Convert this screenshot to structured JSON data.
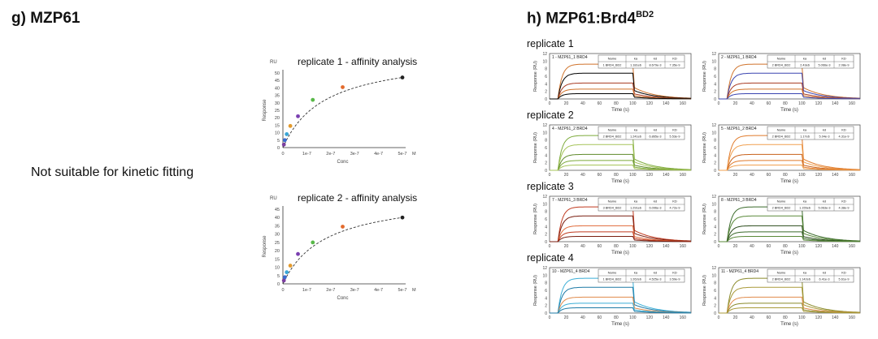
{
  "panel_g": {
    "title": "g) MZP61",
    "note": "Not suitable for kinetic fitting"
  },
  "panel_h": {
    "title": "h) MZP61:Brd4",
    "title_sup": "BD2",
    "replicate_labels": [
      "replicate 1",
      "replicate 2",
      "replicate 3",
      "replicate 4"
    ]
  },
  "chart_data": [
    {
      "type": "scatter",
      "title": "replicate 1 - affinity analysis",
      "xlabel": "Conc",
      "ylabel": "Response",
      "yunit": "RU",
      "xunit": "M",
      "xlim": [
        0,
        5e-07
      ],
      "ylim": [
        0,
        50
      ],
      "xticks": [
        "0",
        "1e-7",
        "2e-7",
        "3e-7",
        "4e-7",
        "5e-7"
      ],
      "yticks": [
        "0",
        "5",
        "10",
        "15",
        "20",
        "25",
        "30",
        "35",
        "40",
        "45",
        "50"
      ],
      "fit": "dashed steady-state affinity curve",
      "points": [
        {
          "x": 4e-09,
          "y": 2,
          "color": "#7b3fa0"
        },
        {
          "x": 8e-09,
          "y": 5,
          "color": "#3a6bd0"
        },
        {
          "x": 1.6e-08,
          "y": 9,
          "color": "#3aa6d6"
        },
        {
          "x": 3.1e-08,
          "y": 14.5,
          "color": "#e39a2c"
        },
        {
          "x": 6.3e-08,
          "y": 21,
          "color": "#7a3fb0"
        },
        {
          "x": 1.25e-07,
          "y": 32,
          "color": "#58b848"
        },
        {
          "x": 2.5e-07,
          "y": 40.5,
          "color": "#e36a2c"
        },
        {
          "x": 5e-07,
          "y": 47,
          "color": "#222222"
        }
      ]
    },
    {
      "type": "scatter",
      "title": "replicate 2 - affinity analysis",
      "xlabel": "Conc",
      "ylabel": "Response",
      "yunit": "RU",
      "xunit": "M",
      "xlim": [
        0,
        5e-07
      ],
      "ylim": [
        0,
        45
      ],
      "xticks": [
        "0",
        "1e-7",
        "2e-7",
        "3e-7",
        "4e-7",
        "5e-7"
      ],
      "yticks": [
        "0",
        "5",
        "10",
        "15",
        "20",
        "25",
        "30",
        "35",
        "40",
        "45"
      ],
      "fit": "dashed steady-state affinity curve",
      "points": [
        {
          "x": 4e-09,
          "y": 2,
          "color": "#7b3fa0"
        },
        {
          "x": 8e-09,
          "y": 4,
          "color": "#3a6bd0"
        },
        {
          "x": 1.6e-08,
          "y": 7,
          "color": "#3aa6d6"
        },
        {
          "x": 3.1e-08,
          "y": 11,
          "color": "#e39a2c"
        },
        {
          "x": 6.3e-08,
          "y": 18,
          "color": "#7a3fb0"
        },
        {
          "x": 1.25e-07,
          "y": 25,
          "color": "#58b848"
        },
        {
          "x": 2.5e-07,
          "y": 34.5,
          "color": "#e36a2c"
        },
        {
          "x": 5e-07,
          "y": 40,
          "color": "#222222"
        }
      ]
    }
  ],
  "sensorgrams": {
    "xlabel": "Time (s)",
    "ylabel": "Response (RU)",
    "xticks": [
      "0",
      "20",
      "40",
      "60",
      "80",
      "100",
      "120",
      "140",
      "160"
    ],
    "yticks": [
      "0",
      "2",
      "4",
      "6",
      "8",
      "10",
      "12"
    ],
    "ylim": [
      0,
      12
    ],
    "xlim": [
      0,
      170
    ],
    "table_headers": [
      "Name",
      "ka",
      "kd",
      "KD"
    ],
    "plots": [
      {
        "title": "1 - MZP61_1 BRD4",
        "colors": [
          "#d0722a",
          "#000000",
          "#a83a22"
        ],
        "table_row": [
          "1 BRD4_BD2",
          "1.181e6",
          "8.679e-3",
          "7.35e-9"
        ]
      },
      {
        "title": "2 - MZP61_1 BRD4",
        "colors": [
          "#d0722a",
          "#3a44b0",
          "#a83a22"
        ],
        "table_row": [
          "2 BRD4_BD2",
          "2.43e6",
          "5.066e-3",
          "2.08e-9"
        ]
      },
      {
        "title": "4 - MZP61_2 BRD4",
        "colors": [
          "#7caa3a",
          "#a6c45a",
          "#5f8a2a"
        ],
        "table_row": [
          "2 BRD4_BD2",
          "1.241e6",
          "6.865e-3",
          "5.53e-9"
        ]
      },
      {
        "title": "5 - MZP61_2 BRD4",
        "colors": [
          "#e07a2a",
          "#f0a050",
          "#c8601a"
        ],
        "table_row": [
          "2 BRD4_BD2",
          "1.17e6",
          "5.04e-3",
          "4.31e-9"
        ]
      },
      {
        "title": "7 - MZP61_3 BRD4",
        "colors": [
          "#c0391e",
          "#7a1e10",
          "#e06a3a"
        ],
        "table_row": [
          "3 BRD4_BD2",
          "1.291e6",
          "6.096e-3",
          "4.72e-9"
        ]
      },
      {
        "title": "8 - MZP61_3 BRD4",
        "colors": [
          "#3a6a2a",
          "#5a8a3a",
          "#2a4a1a"
        ],
        "table_row": [
          "2 BRD4_BD2",
          "1.155e6",
          "5.063e-3",
          "4.38e-9"
        ]
      },
      {
        "title": "10 - MZP61_4 BRD4",
        "colors": [
          "#3aaed6",
          "#1e7aa6",
          "#e08a4a"
        ],
        "table_row": [
          "1 BRD4_BD2",
          "1.262e6",
          "4.525e-3",
          "3.59e-9"
        ]
      },
      {
        "title": "11 - MZP61_4 BRD4",
        "colors": [
          "#8a8a2a",
          "#aa9a3a",
          "#e08a4a"
        ],
        "table_row": [
          "2 BRD4_BD2",
          "1.142e6",
          "6.41e-3",
          "5.61e-9"
        ]
      }
    ]
  }
}
